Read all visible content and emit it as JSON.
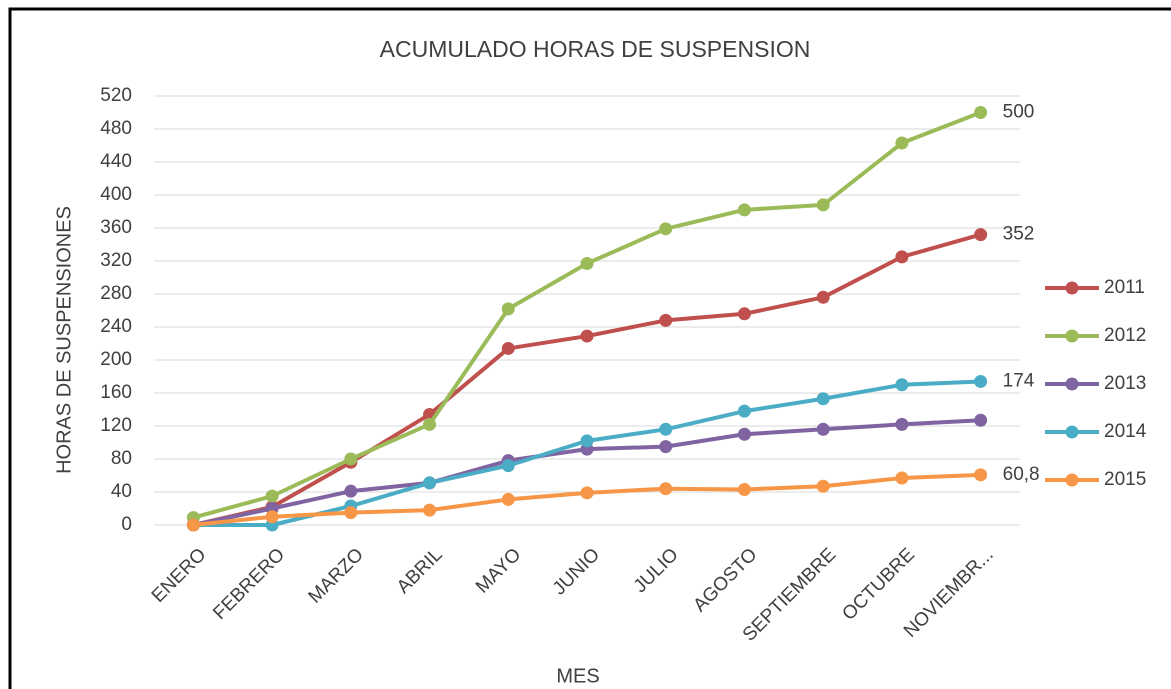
{
  "chart_data": {
    "type": "line",
    "title": "ACUMULADO HORAS DE SUSPENSION",
    "x_label": "MES",
    "y_label": "HORAS DE SUSPENSIONES",
    "categories": [
      "ENERO",
      "FEBRERO",
      "MARZO",
      "ABRIL",
      "MAYO",
      "JUNIO",
      "JULIO",
      "AGOSTO",
      "SEPTIEMBRE",
      "OCTUBRE",
      "NOVIEMBR..."
    ],
    "series": [
      {
        "name": "2011",
        "color": "#c0504d",
        "values": [
          0,
          22,
          76,
          134,
          214,
          229,
          248,
          256,
          276,
          325,
          352
        ],
        "value_labels": [
          null,
          null,
          null,
          null,
          null,
          null,
          null,
          null,
          null,
          null,
          "352"
        ]
      },
      {
        "name": "2012",
        "color": "#9bbb59",
        "values": [
          9,
          35,
          80,
          122,
          262,
          317,
          359,
          382,
          388,
          463,
          500
        ],
        "value_labels": [
          null,
          null,
          null,
          null,
          null,
          null,
          null,
          null,
          null,
          null,
          "500"
        ]
      },
      {
        "name": "2013",
        "color": "#8064a2",
        "values": [
          0,
          20,
          41,
          51,
          78,
          92,
          95,
          110,
          116,
          122,
          127
        ]
      },
      {
        "name": "2014",
        "color": "#4bacc6",
        "values": [
          0,
          0,
          23,
          51,
          72,
          102,
          116,
          138,
          153,
          170,
          174
        ],
        "value_labels": [
          null,
          null,
          null,
          null,
          null,
          null,
          null,
          null,
          null,
          null,
          "174"
        ]
      },
      {
        "name": "2015",
        "color": "#f79646",
        "values": [
          0,
          10,
          15,
          18,
          31,
          39,
          44,
          43,
          47,
          57,
          60.8
        ],
        "value_labels": [
          null,
          null,
          null,
          null,
          null,
          null,
          null,
          null,
          null,
          null,
          "60,8"
        ]
      }
    ],
    "ylim": [
      0,
      520
    ],
    "yticks": [
      0,
      40,
      80,
      120,
      160,
      200,
      240,
      280,
      320,
      360,
      400,
      440,
      480,
      520
    ],
    "grid": true,
    "legend": "right"
  }
}
